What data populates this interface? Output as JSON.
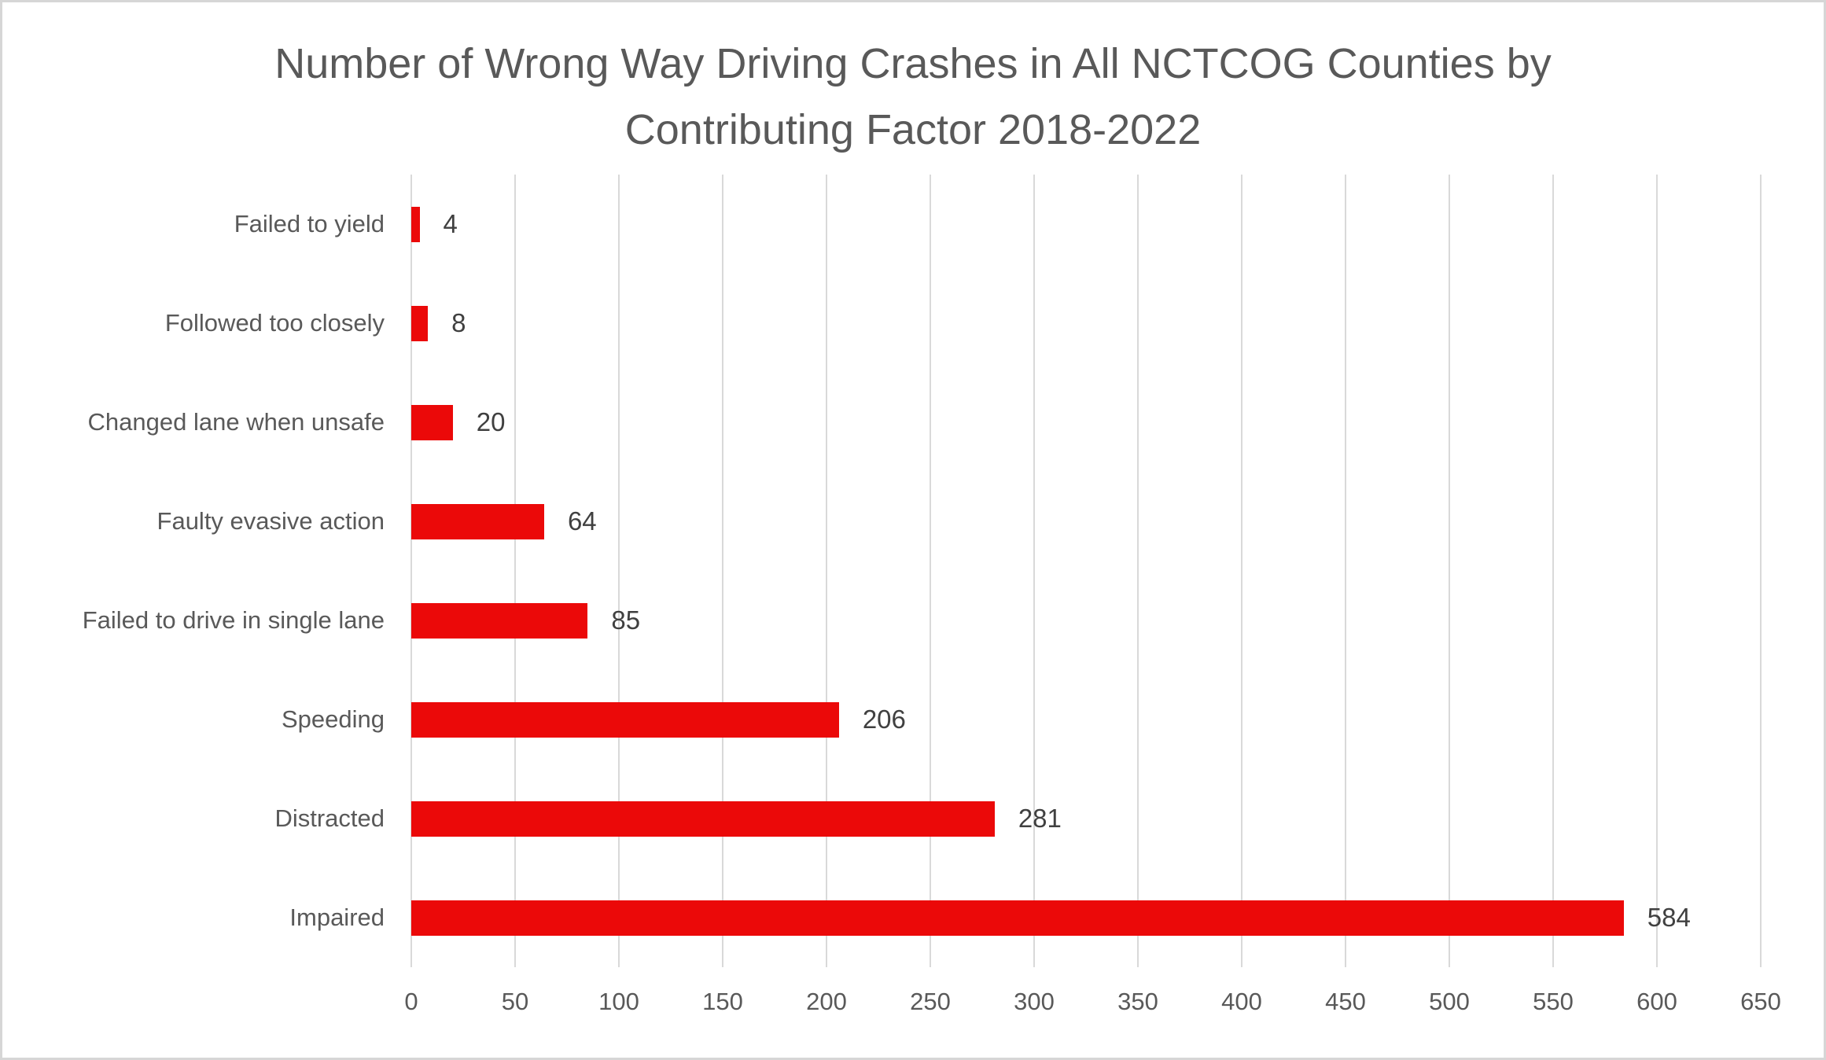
{
  "window": {
    "background_color": "#FFFFFF",
    "border_color": "#D6D6D6"
  },
  "chart_data": {
    "type": "bar",
    "orientation": "horizontal",
    "title": "Number of Wrong Way Driving Crashes in All NCTCOG Counties by Contributing Factor 2018-2022",
    "title_lines": [
      "Number of Wrong Way Driving Crashes in All NCTCOG Counties by",
      "Contributing Factor 2018-2022"
    ],
    "categories": [
      "Failed to yield",
      "Followed too closely",
      "Changed lane when unsafe",
      "Faulty evasive action",
      "Failed to drive in single lane",
      "Speeding",
      "Distracted",
      "Impaired"
    ],
    "values": [
      4,
      8,
      20,
      64,
      85,
      206,
      281,
      584
    ],
    "data_labels": [
      "4",
      "8",
      "20",
      "64",
      "85",
      "206",
      "281",
      "584"
    ],
    "xlabel": "",
    "ylabel": "",
    "xlim": [
      0,
      650
    ],
    "xticks": [
      0,
      50,
      100,
      150,
      200,
      250,
      300,
      350,
      400,
      450,
      500,
      550,
      600,
      650
    ],
    "grid": "vertical",
    "legend": "none",
    "bar_color": "#EB0909",
    "gridline_color": "#D9D9D9",
    "title_color": "#595959",
    "axis_label_color": "#595959",
    "value_label_color": "#404040"
  }
}
